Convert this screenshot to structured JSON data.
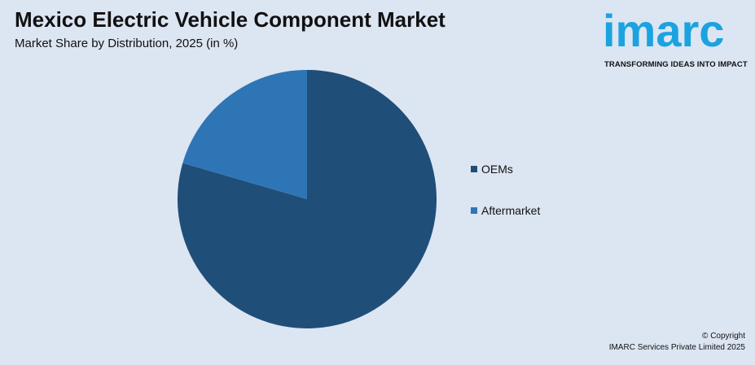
{
  "chart_data": {
    "type": "pie",
    "title": "Mexico Electric Vehicle Component Market",
    "subtitle": "Market Share by Distribution, 2025 (in %)",
    "categories": [
      "OEMs",
      "Aftermarket"
    ],
    "values": [
      79.5,
      20.5
    ],
    "colors": [
      "#1f4e79",
      "#2e75b6"
    ],
    "legend_position": "right"
  },
  "logo": {
    "text": "imarc",
    "tagline": "TRANSFORMING IDEAS INTO IMPACT",
    "color": "#1aa3e0"
  },
  "footer": {
    "copyright": "© Copyright",
    "company": "IMARC Services Private Limited 2025"
  }
}
